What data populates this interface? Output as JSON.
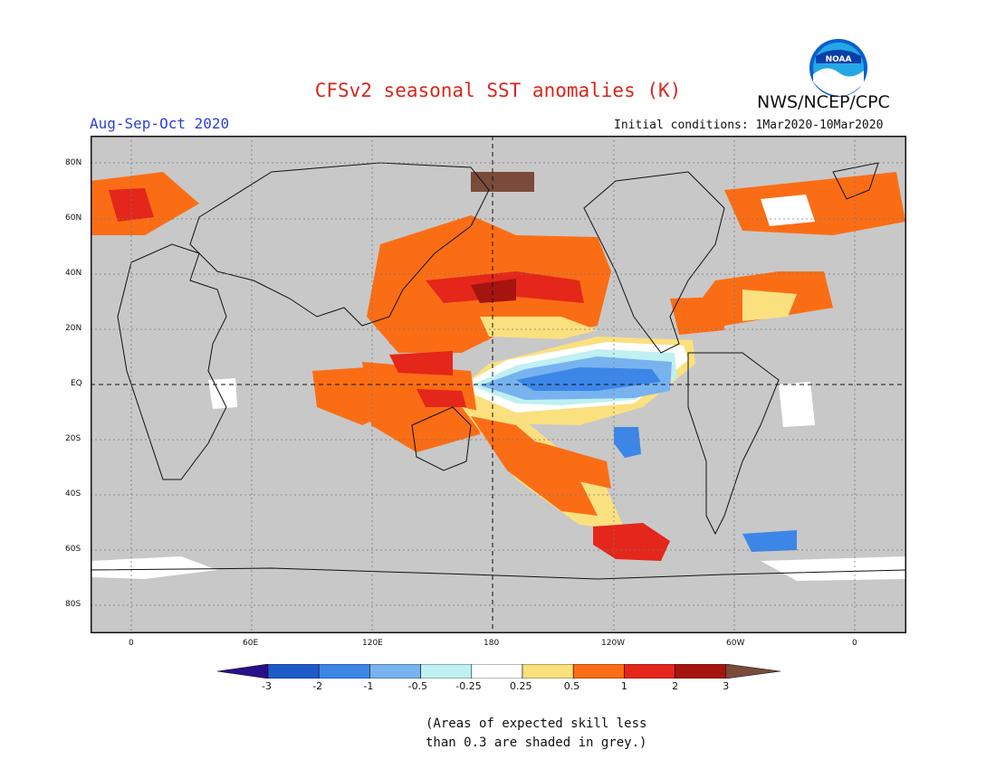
{
  "title": "CFSv2 seasonal SST anomalies (K)",
  "agency": "NWS/NCEP/CPC",
  "logo_text": "NOAA",
  "season": "Aug-Sep-Oct 2020",
  "initial_conditions": "Initial conditions: 1Mar2020-10Mar2020",
  "note_lines": [
    "(Areas of expected skill less",
    "than 0.3 are shaded in grey.)"
  ],
  "lat_labels": [
    "80N",
    "60N",
    "40N",
    "20N",
    "EQ",
    "20S",
    "40S",
    "60S",
    "80S"
  ],
  "lon_labels": [
    "0",
    "60E",
    "120E",
    "180",
    "120W",
    "60W",
    "0"
  ],
  "colorbar": {
    "tick_labels": [
      "-3",
      "-2",
      "-1",
      "-0.5",
      "-0.25",
      "0.25",
      "0.5",
      "1",
      "2",
      "3"
    ],
    "colors": [
      "#2a0f8a",
      "#1f5bc8",
      "#3c86e8",
      "#78b3f0",
      "#bff0f2",
      "#ffffff",
      "#fbe07f",
      "#fb6d15",
      "#e4261b",
      "#a61410",
      "#7a4a3a"
    ]
  },
  "colors": {
    "grey_mask": "#c8c8c8",
    "title": "#d9261c",
    "season": "#2b3fd8"
  }
}
